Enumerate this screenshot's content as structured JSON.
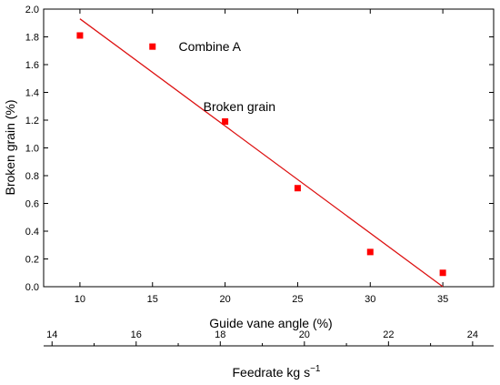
{
  "chart_data": {
    "type": "scatter",
    "title": "",
    "ylabel": "Broken grain (%)",
    "ylim": [
      0.0,
      2.0
    ],
    "yticks": [
      "0.0",
      "0.2",
      "0.4",
      "0.6",
      "0.8",
      "1.0",
      "1.2",
      "1.4",
      "1.6",
      "1.8",
      "2.0"
    ],
    "xlabel": "Guide vane angle (%)",
    "xlim": [
      7.5,
      38.5
    ],
    "xticks": [
      "10",
      "15",
      "20",
      "25",
      "30",
      "35"
    ],
    "x2label_main": "Feedrate kg s",
    "x2label_sup": "−1",
    "x2lim": [
      13.8,
      24.5
    ],
    "x2ticks": [
      "14",
      "16",
      "18",
      "20",
      "22",
      "24"
    ],
    "series": [
      {
        "marker": "square",
        "color": "#ff0000",
        "points": [
          {
            "x": 10,
            "y": 1.81
          },
          {
            "x": 15,
            "y": 1.73
          },
          {
            "x": 20,
            "y": 1.19
          },
          {
            "x": 25,
            "y": 0.71
          },
          {
            "x": 30,
            "y": 0.25
          },
          {
            "x": 35,
            "y": 0.1
          }
        ]
      }
    ],
    "fit_line": {
      "x": [
        10,
        35
      ],
      "y": [
        1.93,
        0.0
      ],
      "color": "#dd1111"
    },
    "annotations": [
      {
        "text": "Combine A",
        "x": 16.8,
        "y": 1.73
      },
      {
        "text": "Broken grain",
        "x": 18.5,
        "y": 1.3
      }
    ]
  }
}
